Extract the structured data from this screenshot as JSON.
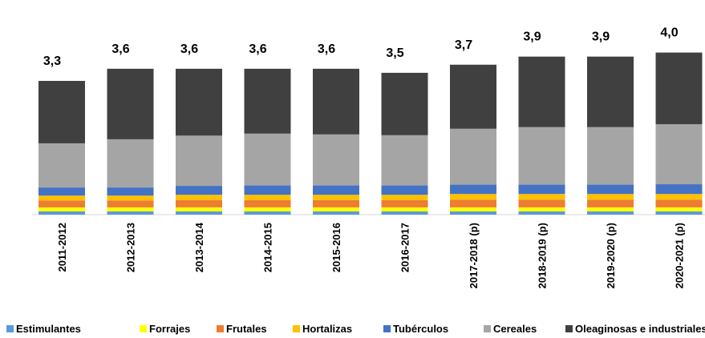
{
  "chart_data": {
    "type": "stacked_bar",
    "categories": [
      "2011-2012",
      "2012-2013",
      "2013-2014",
      "2014-2015",
      "2015-2016",
      "2016-2017",
      "2017-2018 (p)",
      "2018-2019 (p)",
      "2019-2020 (p)",
      "2020-2021 (p)"
    ],
    "series": [
      {
        "name": "Estimulantes",
        "color": "#5b9bd5",
        "values": [
          0.08,
          0.08,
          0.08,
          0.08,
          0.08,
          0.08,
          0.08,
          0.08,
          0.08,
          0.08
        ]
      },
      {
        "name": "Forrajes",
        "color": "#ffff00",
        "values": [
          0.1,
          0.1,
          0.1,
          0.1,
          0.1,
          0.1,
          0.1,
          0.1,
          0.1,
          0.1
        ]
      },
      {
        "name": "Frutales",
        "color": "#ed7d31",
        "values": [
          0.17,
          0.17,
          0.18,
          0.18,
          0.18,
          0.18,
          0.19,
          0.19,
          0.19,
          0.19
        ]
      },
      {
        "name": "Hortalizas",
        "color": "#ffc000",
        "values": [
          0.12,
          0.12,
          0.13,
          0.13,
          0.13,
          0.13,
          0.14,
          0.14,
          0.14,
          0.14
        ]
      },
      {
        "name": "Tubérculos",
        "color": "#4472c4",
        "values": [
          0.2,
          0.2,
          0.22,
          0.23,
          0.23,
          0.23,
          0.23,
          0.23,
          0.23,
          0.24
        ]
      },
      {
        "name": "Cereales",
        "color": "#a5a5a5",
        "values": [
          1.09,
          1.19,
          1.24,
          1.28,
          1.26,
          1.24,
          1.38,
          1.42,
          1.42,
          1.48
        ]
      },
      {
        "name": "Oleaginosas e industriales",
        "color": "#404040",
        "values": [
          1.54,
          1.74,
          1.65,
          1.6,
          1.62,
          1.54,
          1.58,
          1.74,
          1.74,
          1.77
        ]
      }
    ],
    "totals": [
      3.3,
      3.6,
      3.6,
      3.6,
      3.6,
      3.5,
      3.7,
      3.9,
      3.9,
      4.0
    ],
    "total_labels": [
      "3,3",
      "3,6",
      "3,6",
      "3,6",
      "3,6",
      "3,5",
      "3,7",
      "3,9",
      "3,9",
      "4,0"
    ]
  }
}
